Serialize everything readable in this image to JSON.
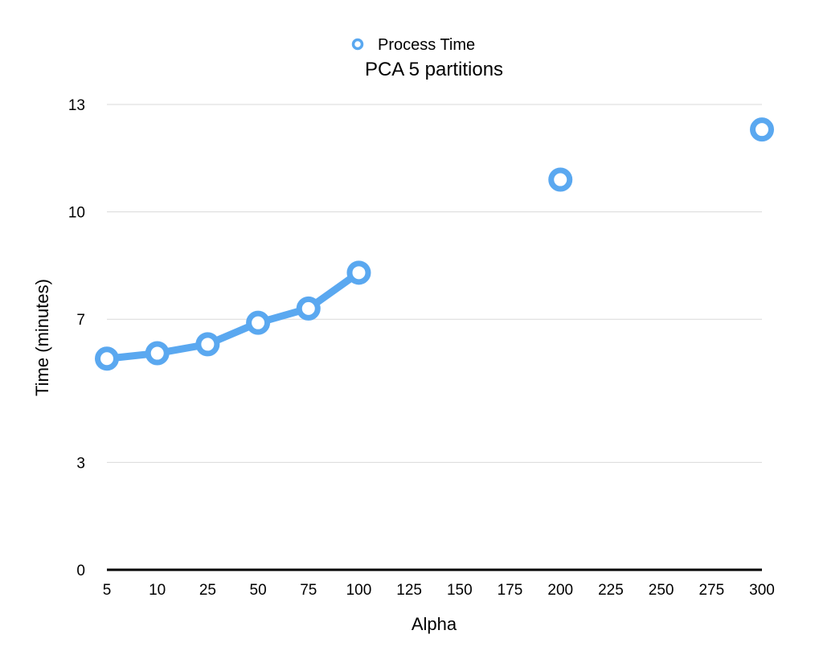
{
  "chart_data": {
    "type": "line",
    "title": "PCA 5 partitions",
    "xlabel": "Alpha",
    "ylabel": "Time (minutes)",
    "categories": [
      "5",
      "10",
      "25",
      "50",
      "75",
      "100",
      "125",
      "150",
      "175",
      "200",
      "225",
      "250",
      "275",
      "300"
    ],
    "y_ticks": [
      "0",
      "3",
      "7",
      "10",
      "13"
    ],
    "ylim": [
      0,
      13
    ],
    "grid": true,
    "legend_position": "top-center",
    "series": [
      {
        "name": "Process Time",
        "color": "#5aa8f0",
        "values": [
          5.9,
          6.05,
          6.3,
          6.9,
          7.3,
          8.3,
          null,
          null,
          null,
          10.9,
          null,
          null,
          null,
          12.3
        ]
      }
    ]
  }
}
